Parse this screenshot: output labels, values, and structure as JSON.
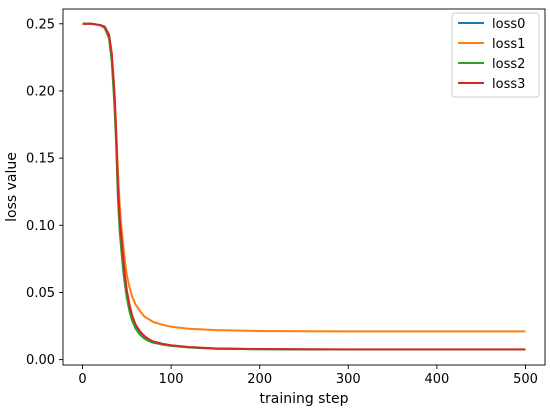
{
  "chart_data": {
    "type": "line",
    "title": "",
    "xlabel": "training step",
    "ylabel": "loss value",
    "xlim": [
      -22,
      522
    ],
    "ylim": [
      -0.004,
      0.261
    ],
    "xticks": [
      0,
      100,
      200,
      300,
      400,
      500
    ],
    "xtick_labels": [
      "0",
      "100",
      "200",
      "300",
      "400",
      "500"
    ],
    "yticks": [
      0.0,
      0.05,
      0.1,
      0.15,
      0.2,
      0.25
    ],
    "ytick_labels": [
      "0.00",
      "0.05",
      "0.10",
      "0.15",
      "0.20",
      "0.25"
    ],
    "grid": false,
    "legend_position": "top-right",
    "series": [
      {
        "name": "loss0",
        "color": "#1f77b4",
        "x": [
          0,
          10,
          20,
          25,
          30,
          33,
          36,
          38,
          40,
          42,
          44,
          46,
          48,
          50,
          53,
          56,
          60,
          65,
          70,
          75,
          80,
          90,
          100,
          120,
          150,
          200,
          250,
          300,
          400,
          500
        ],
        "y": [
          0.25,
          0.25,
          0.249,
          0.247,
          0.24,
          0.225,
          0.195,
          0.165,
          0.125,
          0.1,
          0.085,
          0.07,
          0.058,
          0.048,
          0.038,
          0.031,
          0.025,
          0.02,
          0.017,
          0.015,
          0.013,
          0.0115,
          0.0105,
          0.0092,
          0.0082,
          0.0078,
          0.0076,
          0.0075,
          0.0075,
          0.0075
        ]
      },
      {
        "name": "loss1",
        "color": "#ff7f0e",
        "x": [
          0,
          10,
          20,
          25,
          30,
          33,
          36,
          38,
          40,
          42,
          44,
          46,
          48,
          50,
          53,
          56,
          60,
          65,
          70,
          75,
          80,
          90,
          100,
          120,
          150,
          200,
          250,
          300,
          400,
          500
        ],
        "y": [
          0.25,
          0.25,
          0.249,
          0.247,
          0.241,
          0.228,
          0.2,
          0.172,
          0.14,
          0.115,
          0.098,
          0.085,
          0.073,
          0.063,
          0.054,
          0.047,
          0.041,
          0.036,
          0.032,
          0.03,
          0.028,
          0.026,
          0.0245,
          0.023,
          0.022,
          0.0213,
          0.0211,
          0.021,
          0.021,
          0.021
        ]
      },
      {
        "name": "loss2",
        "color": "#2ca02c",
        "x": [
          0,
          10,
          20,
          25,
          30,
          33,
          36,
          38,
          40,
          42,
          44,
          46,
          48,
          50,
          53,
          56,
          60,
          65,
          70,
          75,
          80,
          90,
          100,
          120,
          150,
          200,
          250,
          300,
          400,
          500
        ],
        "y": [
          0.25,
          0.25,
          0.249,
          0.247,
          0.239,
          0.222,
          0.19,
          0.16,
          0.12,
          0.095,
          0.08,
          0.066,
          0.055,
          0.046,
          0.036,
          0.029,
          0.023,
          0.0185,
          0.0155,
          0.0138,
          0.0125,
          0.0112,
          0.0102,
          0.009,
          0.0081,
          0.0077,
          0.0075,
          0.0075,
          0.0075,
          0.0075
        ]
      },
      {
        "name": "loss3",
        "color": "#d62728",
        "x": [
          0,
          10,
          20,
          25,
          30,
          33,
          36,
          38,
          40,
          42,
          44,
          46,
          48,
          50,
          53,
          56,
          60,
          65,
          70,
          75,
          80,
          90,
          100,
          120,
          150,
          200,
          250,
          300,
          400,
          500
        ],
        "y": [
          0.25,
          0.25,
          0.249,
          0.248,
          0.242,
          0.228,
          0.2,
          0.17,
          0.13,
          0.105,
          0.09,
          0.075,
          0.062,
          0.052,
          0.041,
          0.033,
          0.026,
          0.021,
          0.0175,
          0.0152,
          0.0135,
          0.0118,
          0.0107,
          0.0094,
          0.0084,
          0.0079,
          0.0077,
          0.0076,
          0.0076,
          0.0076
        ]
      }
    ]
  }
}
